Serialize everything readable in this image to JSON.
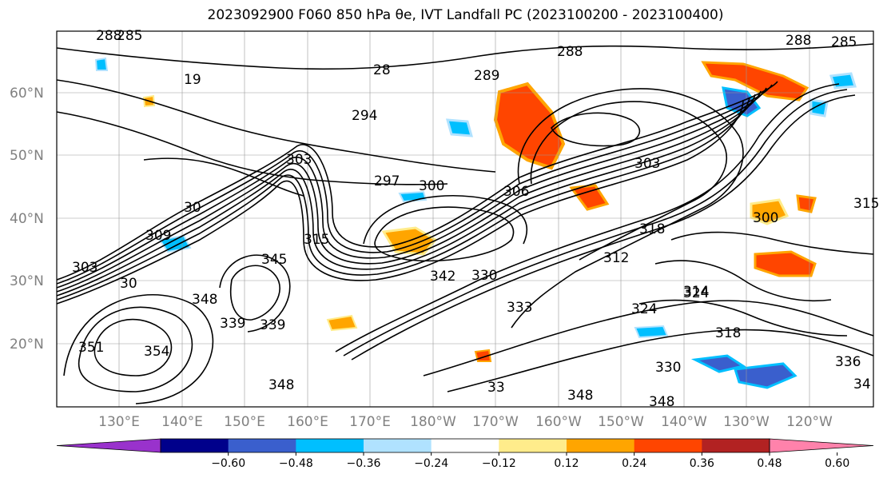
{
  "title": "2023092900 F060 850 hPa θe, IVT Landfall PC (2023100200 - 2023100400)",
  "latitude_labels": [
    "60°N",
    "50°N",
    "40°N",
    "30°N",
    "20°N"
  ],
  "longitude_labels": [
    "130°E",
    "140°E",
    "150°E",
    "160°E",
    "170°E",
    "180°W",
    "170°W",
    "160°W",
    "150°W",
    "140°W",
    "130°W",
    "120°W"
  ],
  "colorbar": {
    "colors": [
      "#9932cc",
      "#00008b",
      "#3a5fcd",
      "#00bfff",
      "#b0e2ff",
      "#ffffff",
      "#ffec8b",
      "#ffa500",
      "#ff4500",
      "#b22222",
      "#ff82ab"
    ],
    "tick_labels": [
      "−0.60",
      "−0.48",
      "−0.36",
      "−0.24",
      "−0.12",
      "0.12",
      "0.24",
      "0.36",
      "0.48",
      "0.60"
    ]
  },
  "contour_labels": [
    "288",
    "285",
    "19",
    "28",
    "289",
    "288",
    "285",
    "288",
    "294",
    "297",
    "303",
    "300",
    "306",
    "303",
    "312",
    "315",
    "345",
    "318",
    "30",
    "309",
    "303",
    "30",
    "342",
    "330",
    "348",
    "339",
    "339",
    "333",
    "351",
    "354",
    "348",
    "324",
    "314",
    "318",
    "324",
    "330",
    "348",
    "348",
    "336",
    "34",
    "33",
    "300",
    "315"
  ]
}
